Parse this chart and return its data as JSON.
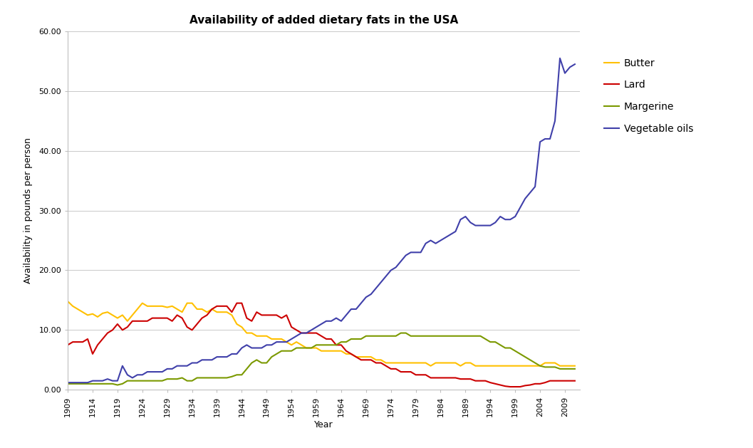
{
  "title": "Availability of added dietary fats in the USA",
  "xlabel": "Year",
  "ylabel": "Availability in pounds per person",
  "ylim": [
    0,
    60
  ],
  "yticks": [
    0,
    10,
    20,
    30,
    40,
    50,
    60
  ],
  "ytick_labels": [
    "0.00",
    "10.00",
    "20.00",
    "30.00",
    "40.00",
    "50.00",
    "60.00"
  ],
  "background_color": "#ffffff",
  "series": {
    "Butter": {
      "color": "#FFC000",
      "data": {
        "1909": 14.8,
        "1910": 14.0,
        "1911": 13.5,
        "1912": 13.0,
        "1913": 12.5,
        "1914": 12.7,
        "1915": 12.2,
        "1916": 12.8,
        "1917": 13.0,
        "1918": 12.5,
        "1919": 12.0,
        "1920": 12.5,
        "1921": 11.5,
        "1922": 12.5,
        "1923": 13.5,
        "1924": 14.5,
        "1925": 14.0,
        "1926": 14.0,
        "1927": 14.0,
        "1928": 14.0,
        "1929": 13.8,
        "1930": 14.0,
        "1931": 13.5,
        "1932": 13.0,
        "1933": 14.5,
        "1934": 14.5,
        "1935": 13.5,
        "1936": 13.5,
        "1937": 13.0,
        "1938": 13.5,
        "1939": 13.0,
        "1940": 13.0,
        "1941": 13.0,
        "1942": 12.5,
        "1943": 11.0,
        "1944": 10.5,
        "1945": 9.5,
        "1946": 9.5,
        "1947": 9.0,
        "1948": 9.0,
        "1949": 9.0,
        "1950": 8.5,
        "1951": 8.5,
        "1952": 8.5,
        "1953": 8.0,
        "1954": 7.5,
        "1955": 8.0,
        "1956": 7.5,
        "1957": 7.0,
        "1958": 7.0,
        "1959": 7.0,
        "1960": 6.5,
        "1961": 6.5,
        "1962": 6.5,
        "1963": 6.5,
        "1964": 6.5,
        "1965": 6.0,
        "1966": 6.0,
        "1967": 5.5,
        "1968": 5.5,
        "1969": 5.5,
        "1970": 5.5,
        "1971": 5.0,
        "1972": 5.0,
        "1973": 4.5,
        "1974": 4.5,
        "1975": 4.5,
        "1976": 4.5,
        "1977": 4.5,
        "1978": 4.5,
        "1979": 4.5,
        "1980": 4.5,
        "1981": 4.5,
        "1982": 4.0,
        "1983": 4.5,
        "1984": 4.5,
        "1985": 4.5,
        "1986": 4.5,
        "1987": 4.5,
        "1988": 4.0,
        "1989": 4.5,
        "1990": 4.5,
        "1991": 4.0,
        "1992": 4.0,
        "1993": 4.0,
        "1994": 4.0,
        "1995": 4.0,
        "1996": 4.0,
        "1997": 4.0,
        "1998": 4.0,
        "1999": 4.0,
        "2000": 4.0,
        "2001": 4.0,
        "2002": 4.0,
        "2003": 4.0,
        "2004": 4.0,
        "2005": 4.5,
        "2006": 4.5,
        "2007": 4.5,
        "2008": 4.0,
        "2009": 4.0,
        "2010": 4.0,
        "2011": 4.0
      }
    },
    "Lard": {
      "color": "#CC0000",
      "data": {
        "1909": 7.5,
        "1910": 8.0,
        "1911": 8.0,
        "1912": 8.0,
        "1913": 8.5,
        "1914": 6.0,
        "1915": 7.5,
        "1916": 8.5,
        "1917": 9.5,
        "1918": 10.0,
        "1919": 11.0,
        "1920": 10.0,
        "1921": 10.5,
        "1922": 11.5,
        "1923": 11.5,
        "1924": 11.5,
        "1925": 11.5,
        "1926": 12.0,
        "1927": 12.0,
        "1928": 12.0,
        "1929": 12.0,
        "1930": 11.5,
        "1931": 12.5,
        "1932": 12.0,
        "1933": 10.5,
        "1934": 10.0,
        "1935": 11.0,
        "1936": 12.0,
        "1937": 12.5,
        "1938": 13.5,
        "1939": 14.0,
        "1940": 14.0,
        "1941": 14.0,
        "1942": 13.0,
        "1943": 14.5,
        "1944": 14.5,
        "1945": 12.0,
        "1946": 11.5,
        "1947": 13.0,
        "1948": 12.5,
        "1949": 12.5,
        "1950": 12.5,
        "1951": 12.5,
        "1952": 12.0,
        "1953": 12.5,
        "1954": 10.5,
        "1955": 10.0,
        "1956": 9.5,
        "1957": 9.5,
        "1958": 9.5,
        "1959": 9.5,
        "1960": 9.0,
        "1961": 8.5,
        "1962": 8.5,
        "1963": 7.5,
        "1964": 7.5,
        "1965": 6.5,
        "1966": 6.0,
        "1967": 5.5,
        "1968": 5.0,
        "1969": 5.0,
        "1970": 5.0,
        "1971": 4.5,
        "1972": 4.5,
        "1973": 4.0,
        "1974": 3.5,
        "1975": 3.5,
        "1976": 3.0,
        "1977": 3.0,
        "1978": 3.0,
        "1979": 2.5,
        "1980": 2.5,
        "1981": 2.5,
        "1982": 2.0,
        "1983": 2.0,
        "1984": 2.0,
        "1985": 2.0,
        "1986": 2.0,
        "1987": 2.0,
        "1988": 1.8,
        "1989": 1.8,
        "1990": 1.8,
        "1991": 1.5,
        "1992": 1.5,
        "1993": 1.5,
        "1994": 1.2,
        "1995": 1.0,
        "1996": 0.8,
        "1997": 0.6,
        "1998": 0.5,
        "1999": 0.5,
        "2000": 0.5,
        "2001": 0.7,
        "2002": 0.8,
        "2003": 1.0,
        "2004": 1.0,
        "2005": 1.2,
        "2006": 1.5,
        "2007": 1.5,
        "2008": 1.5,
        "2009": 1.5,
        "2010": 1.5,
        "2011": 1.5
      }
    },
    "Margerine": {
      "color": "#7B9900",
      "data": {
        "1909": 1.0,
        "1910": 1.0,
        "1911": 1.0,
        "1912": 1.0,
        "1913": 1.0,
        "1914": 1.0,
        "1915": 1.0,
        "1916": 1.0,
        "1917": 1.0,
        "1918": 1.0,
        "1919": 0.8,
        "1920": 1.0,
        "1921": 1.5,
        "1922": 1.5,
        "1923": 1.5,
        "1924": 1.5,
        "1925": 1.5,
        "1926": 1.5,
        "1927": 1.5,
        "1928": 1.5,
        "1929": 1.8,
        "1930": 1.8,
        "1931": 1.8,
        "1932": 2.0,
        "1933": 1.5,
        "1934": 1.5,
        "1935": 2.0,
        "1936": 2.0,
        "1937": 2.0,
        "1938": 2.0,
        "1939": 2.0,
        "1940": 2.0,
        "1941": 2.0,
        "1942": 2.2,
        "1943": 2.5,
        "1944": 2.5,
        "1945": 3.5,
        "1946": 4.5,
        "1947": 5.0,
        "1948": 4.5,
        "1949": 4.5,
        "1950": 5.5,
        "1951": 6.0,
        "1952": 6.5,
        "1953": 6.5,
        "1954": 6.5,
        "1955": 7.0,
        "1956": 7.0,
        "1957": 7.0,
        "1958": 7.0,
        "1959": 7.5,
        "1960": 7.5,
        "1961": 7.5,
        "1962": 7.5,
        "1963": 7.5,
        "1964": 8.0,
        "1965": 8.0,
        "1966": 8.5,
        "1967": 8.5,
        "1968": 8.5,
        "1969": 9.0,
        "1970": 9.0,
        "1971": 9.0,
        "1972": 9.0,
        "1973": 9.0,
        "1974": 9.0,
        "1975": 9.0,
        "1976": 9.5,
        "1977": 9.5,
        "1978": 9.0,
        "1979": 9.0,
        "1980": 9.0,
        "1981": 9.0,
        "1982": 9.0,
        "1983": 9.0,
        "1984": 9.0,
        "1985": 9.0,
        "1986": 9.0,
        "1987": 9.0,
        "1988": 9.0,
        "1989": 9.0,
        "1990": 9.0,
        "1991": 9.0,
        "1992": 9.0,
        "1993": 8.5,
        "1994": 8.0,
        "1995": 8.0,
        "1996": 7.5,
        "1997": 7.0,
        "1998": 7.0,
        "1999": 6.5,
        "2000": 6.0,
        "2001": 5.5,
        "2002": 5.0,
        "2003": 4.5,
        "2004": 4.0,
        "2005": 3.8,
        "2006": 3.8,
        "2007": 3.8,
        "2008": 3.5,
        "2009": 3.5,
        "2010": 3.5,
        "2011": 3.5
      }
    },
    "Vegetable oils": {
      "color": "#4040AA",
      "data": {
        "1909": 1.2,
        "1910": 1.2,
        "1911": 1.2,
        "1912": 1.2,
        "1913": 1.2,
        "1914": 1.5,
        "1915": 1.5,
        "1916": 1.5,
        "1917": 1.8,
        "1918": 1.5,
        "1919": 1.5,
        "1920": 4.0,
        "1921": 2.5,
        "1922": 2.0,
        "1923": 2.5,
        "1924": 2.5,
        "1925": 3.0,
        "1926": 3.0,
        "1927": 3.0,
        "1928": 3.0,
        "1929": 3.5,
        "1930": 3.5,
        "1931": 4.0,
        "1932": 4.0,
        "1933": 4.0,
        "1934": 4.5,
        "1935": 4.5,
        "1936": 5.0,
        "1937": 5.0,
        "1938": 5.0,
        "1939": 5.5,
        "1940": 5.5,
        "1941": 5.5,
        "1942": 6.0,
        "1943": 6.0,
        "1944": 7.0,
        "1945": 7.5,
        "1946": 7.0,
        "1947": 7.0,
        "1948": 7.0,
        "1949": 7.5,
        "1950": 7.5,
        "1951": 8.0,
        "1952": 8.0,
        "1953": 8.0,
        "1954": 8.5,
        "1955": 9.0,
        "1956": 9.5,
        "1957": 9.5,
        "1958": 10.0,
        "1959": 10.5,
        "1960": 11.0,
        "1961": 11.5,
        "1962": 11.5,
        "1963": 12.0,
        "1964": 11.5,
        "1965": 12.5,
        "1966": 13.5,
        "1967": 13.5,
        "1968": 14.5,
        "1969": 15.5,
        "1970": 16.0,
        "1971": 17.0,
        "1972": 18.0,
        "1973": 19.0,
        "1974": 20.0,
        "1975": 20.5,
        "1976": 21.5,
        "1977": 22.5,
        "1978": 23.0,
        "1979": 23.0,
        "1980": 23.0,
        "1981": 24.5,
        "1982": 25.0,
        "1983": 24.5,
        "1984": 25.0,
        "1985": 25.5,
        "1986": 26.0,
        "1987": 26.5,
        "1988": 28.5,
        "1989": 29.0,
        "1990": 28.0,
        "1991": 27.5,
        "1992": 27.5,
        "1993": 27.5,
        "1994": 27.5,
        "1995": 28.0,
        "1996": 29.0,
        "1997": 28.5,
        "1998": 28.5,
        "1999": 29.0,
        "2000": 30.5,
        "2001": 32.0,
        "2002": 33.0,
        "2003": 34.0,
        "2004": 41.5,
        "2005": 42.0,
        "2006": 42.0,
        "2007": 45.0,
        "2008": 55.5,
        "2009": 53.0,
        "2010": 54.0,
        "2011": 54.5
      }
    }
  },
  "xtick_years": [
    1909,
    1914,
    1919,
    1924,
    1929,
    1934,
    1939,
    1944,
    1949,
    1954,
    1959,
    1964,
    1969,
    1974,
    1979,
    1984,
    1989,
    1994,
    1999,
    2004,
    2009
  ],
  "grid_color": "#c0c0c0",
  "spine_color": "#c0c0c0",
  "title_fontsize": 11,
  "axis_label_fontsize": 9,
  "tick_fontsize": 8,
  "legend_fontsize": 10,
  "legend_labelspacing": 1.2,
  "linewidth": 1.5
}
